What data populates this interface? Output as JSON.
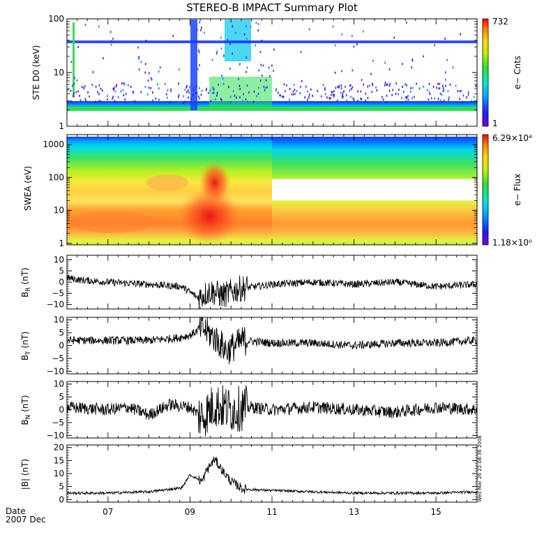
{
  "title": "STEREO-B IMPACT Summary Plot",
  "date_label": "Date",
  "date_value": "2007 Dec",
  "timestamp": "Wed Mar 26 22:08:36 2008",
  "x_axis": {
    "range": [
      6.0,
      16.0
    ],
    "tick_labels": [
      "07",
      "09",
      "11",
      "13",
      "15"
    ],
    "tick_values": [
      7,
      9,
      11,
      13,
      15
    ]
  },
  "chart_data": [
    {
      "type": "heatmap",
      "ylabel": "STE D0 (keV)",
      "yscale": "log",
      "ylim": [
        1,
        100
      ],
      "yticks": [
        {
          "v": 1,
          "label": "1"
        },
        {
          "v": 10,
          "label": "10"
        },
        {
          "v": 100,
          "label": "100"
        }
      ],
      "colorbar": {
        "label": "e− Cnts",
        "max_label": "732",
        "min_label": "1"
      }
    },
    {
      "type": "heatmap",
      "ylabel": "SWEA (eV)",
      "yscale": "log",
      "ylim": [
        0.9,
        2000
      ],
      "yticks": [
        {
          "v": 1,
          "label": "1"
        },
        {
          "v": 10,
          "label": "10"
        },
        {
          "v": 100,
          "label": "100"
        },
        {
          "v": 1000,
          "label": "1000"
        }
      ],
      "colorbar": {
        "label": "e− Flux",
        "max_label": "6.29×10⁴",
        "min_label": "1.18×10⁰"
      },
      "data_gap": {
        "x_start": 11.0,
        "x_end": 16.0,
        "y_low": 20,
        "y_high": 90
      }
    },
    {
      "type": "line",
      "ylabel": "B_R (nT)",
      "ylabel_main": "B",
      "ylabel_sub": "R",
      "ylabel_unit": " (nT)",
      "ylim": [
        -12,
        12
      ],
      "yticks": [
        {
          "v": -10,
          "label": "−10"
        },
        {
          "v": -5,
          "label": "−5"
        },
        {
          "v": 0,
          "label": "0"
        },
        {
          "v": 5,
          "label": "5"
        },
        {
          "v": 10,
          "label": "10"
        }
      ],
      "key_points": {
        "x": [
          6.0,
          6.3,
          7.0,
          8.0,
          8.8,
          9.2,
          9.5,
          9.8,
          10.2,
          11.0,
          12.0,
          13.0,
          14.0,
          15.0,
          16.0
        ],
        "y": [
          2,
          1,
          0,
          -1,
          -2,
          -7,
          -4,
          -6,
          -3,
          -1,
          0,
          -1,
          0,
          -2,
          -1
        ]
      }
    },
    {
      "type": "line",
      "ylabel": "B_T (nT)",
      "ylabel_main": "B",
      "ylabel_sub": "T",
      "ylabel_unit": " (nT)",
      "ylim": [
        -11,
        11
      ],
      "yticks": [
        {
          "v": -10,
          "label": "−10"
        },
        {
          "v": -5,
          "label": "−5"
        },
        {
          "v": 0,
          "label": "0"
        },
        {
          "v": 5,
          "label": "5"
        },
        {
          "v": 10,
          "label": "10"
        }
      ],
      "key_points": {
        "x": [
          6.0,
          7.0,
          8.0,
          8.7,
          9.0,
          9.3,
          9.6,
          9.9,
          10.3,
          11.0,
          12.0,
          13.0,
          14.0,
          15.0,
          16.0
        ],
        "y": [
          2,
          2,
          2,
          3,
          4,
          7,
          3,
          -2,
          2,
          1,
          1,
          0,
          1,
          1,
          2
        ]
      }
    },
    {
      "type": "line",
      "ylabel": "B_N (nT)",
      "ylabel_main": "B",
      "ylabel_sub": "N",
      "ylabel_unit": " (nT)",
      "ylim": [
        -11,
        11
      ],
      "yticks": [
        {
          "v": -10,
          "label": "−10"
        },
        {
          "v": -5,
          "label": "−5"
        },
        {
          "v": 0,
          "label": "0"
        },
        {
          "v": 5,
          "label": "5"
        },
        {
          "v": 10,
          "label": "10"
        }
      ],
      "key_points": {
        "x": [
          6.0,
          7.0,
          7.5,
          8.0,
          8.5,
          9.0,
          9.3,
          9.6,
          10.0,
          10.5,
          11.0,
          12.0,
          13.0,
          14.0,
          15.0,
          16.0
        ],
        "y": [
          1,
          0,
          1,
          -2,
          2,
          1,
          -3,
          2,
          0,
          1,
          0,
          1,
          0,
          -1,
          1,
          0
        ]
      }
    },
    {
      "type": "line",
      "ylabel": "|B| (nT)",
      "ylabel_main": "|B|",
      "ylabel_sub": "",
      "ylabel_unit": " (nT)",
      "ylim": [
        -1,
        21
      ],
      "yticks": [
        {
          "v": 0,
          "label": "0"
        },
        {
          "v": 5,
          "label": "5"
        },
        {
          "v": 10,
          "label": "10"
        },
        {
          "v": 15,
          "label": "15"
        },
        {
          "v": 20,
          "label": "20"
        }
      ],
      "key_points": {
        "x": [
          6.0,
          7.0,
          8.0,
          8.8,
          9.0,
          9.3,
          9.4,
          9.6,
          9.8,
          10.0,
          10.3,
          11.0,
          12.0,
          13.0,
          14.0,
          15.0,
          16.0
        ],
        "y": [
          2.5,
          2.5,
          3,
          4.5,
          9.5,
          7,
          11,
          15.5,
          11,
          7,
          4,
          3.5,
          3,
          2.5,
          2.5,
          2.5,
          3
        ]
      }
    }
  ]
}
